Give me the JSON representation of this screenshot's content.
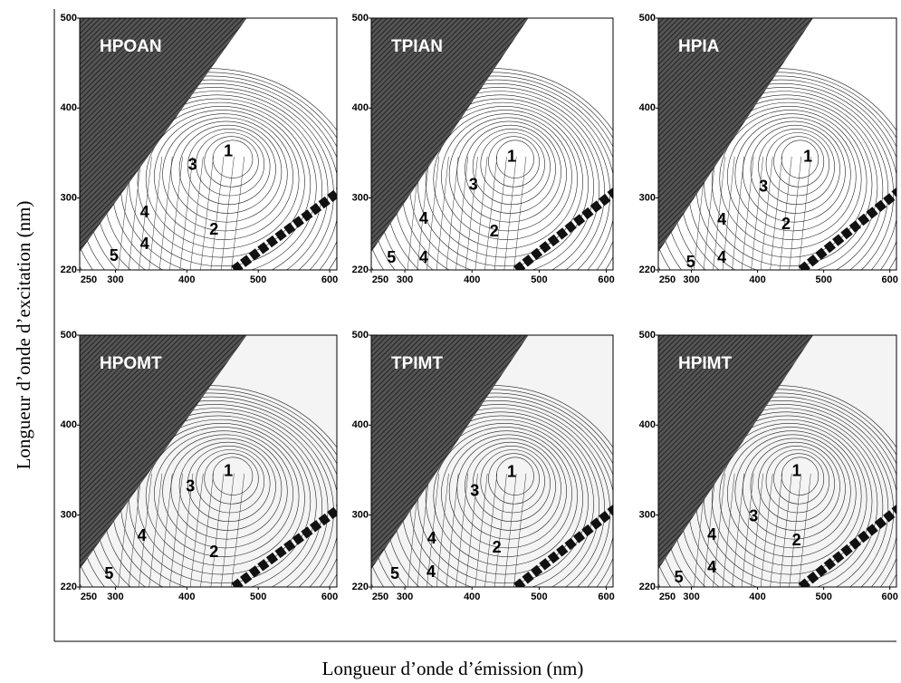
{
  "y_label": "Longueur d’onde d’excitation (nm)",
  "x_label": "Longueur d’onde d’émission (nm)",
  "chart_data": [
    {
      "type": "contour",
      "title": "HPOAN",
      "xlim": [
        250,
        610
      ],
      "ylim": [
        220,
        500
      ],
      "xticks": [
        250,
        300,
        400,
        500,
        600
      ],
      "yticks": [
        220,
        300,
        400,
        500
      ],
      "annotations": [
        {
          "label": "1",
          "x": 458,
          "y": 351
        },
        {
          "label": "3",
          "x": 408,
          "y": 336
        },
        {
          "label": "4",
          "x": 341,
          "y": 283
        },
        {
          "label": "4",
          "x": 341,
          "y": 248
        },
        {
          "label": "2",
          "x": 438,
          "y": 264
        },
        {
          "label": "5",
          "x": 298,
          "y": 235
        }
      ]
    },
    {
      "type": "contour",
      "title": "TPIAN",
      "xlim": [
        250,
        610
      ],
      "ylim": [
        220,
        500
      ],
      "xticks": [
        250,
        300,
        400,
        500,
        600
      ],
      "yticks": [
        220,
        300,
        400,
        500
      ],
      "annotations": [
        {
          "label": "1",
          "x": 459,
          "y": 345
        },
        {
          "label": "3",
          "x": 402,
          "y": 314
        },
        {
          "label": "4",
          "x": 328,
          "y": 276
        },
        {
          "label": "2",
          "x": 433,
          "y": 262
        },
        {
          "label": "5",
          "x": 280,
          "y": 233
        },
        {
          "label": "4",
          "x": 328,
          "y": 233
        }
      ]
    },
    {
      "type": "contour",
      "title": "HPIA",
      "xlim": [
        250,
        610
      ],
      "ylim": [
        220,
        500
      ],
      "xticks": [
        250,
        300,
        400,
        500,
        600
      ],
      "yticks": [
        220,
        300,
        400,
        500
      ],
      "annotations": [
        {
          "label": "1",
          "x": 476,
          "y": 345
        },
        {
          "label": "3",
          "x": 409,
          "y": 312
        },
        {
          "label": "4",
          "x": 346,
          "y": 275
        },
        {
          "label": "2",
          "x": 443,
          "y": 270
        },
        {
          "label": "5",
          "x": 299,
          "y": 228
        },
        {
          "label": "4",
          "x": 346,
          "y": 233
        }
      ]
    },
    {
      "type": "contour",
      "title": "HPOMT",
      "xlim": [
        250,
        610
      ],
      "ylim": [
        220,
        500
      ],
      "xticks": [
        250,
        300,
        400,
        500,
        600
      ],
      "yticks": [
        220,
        300,
        400,
        500
      ],
      "annotations": [
        {
          "label": "1",
          "x": 458,
          "y": 348
        },
        {
          "label": "3",
          "x": 405,
          "y": 331
        },
        {
          "label": "4",
          "x": 337,
          "y": 276
        },
        {
          "label": "2",
          "x": 438,
          "y": 258
        },
        {
          "label": "5",
          "x": 291,
          "y": 234
        }
      ]
    },
    {
      "type": "contour",
      "title": "TPIMT",
      "xlim": [
        250,
        610
      ],
      "ylim": [
        220,
        500
      ],
      "xticks": [
        250,
        300,
        400,
        500,
        600
      ],
      "yticks": [
        220,
        300,
        400,
        500
      ],
      "annotations": [
        {
          "label": "1",
          "x": 459,
          "y": 347
        },
        {
          "label": "3",
          "x": 404,
          "y": 326
        },
        {
          "label": "4",
          "x": 340,
          "y": 273
        },
        {
          "label": "2",
          "x": 437,
          "y": 263
        },
        {
          "label": "5",
          "x": 285,
          "y": 234
        },
        {
          "label": "4",
          "x": 339,
          "y": 236
        }
      ]
    },
    {
      "type": "contour",
      "title": "HPIMT",
      "xlim": [
        250,
        610
      ],
      "ylim": [
        220,
        500
      ],
      "xticks": [
        250,
        300,
        400,
        500,
        600
      ],
      "yticks": [
        220,
        300,
        400,
        500
      ],
      "annotations": [
        {
          "label": "1",
          "x": 459,
          "y": 348
        },
        {
          "label": "3",
          "x": 394,
          "y": 298
        },
        {
          "label": "4",
          "x": 331,
          "y": 277
        },
        {
          "label": "2",
          "x": 459,
          "y": 271
        },
        {
          "label": "5",
          "x": 281,
          "y": 230
        },
        {
          "label": "4",
          "x": 331,
          "y": 241
        }
      ]
    }
  ]
}
